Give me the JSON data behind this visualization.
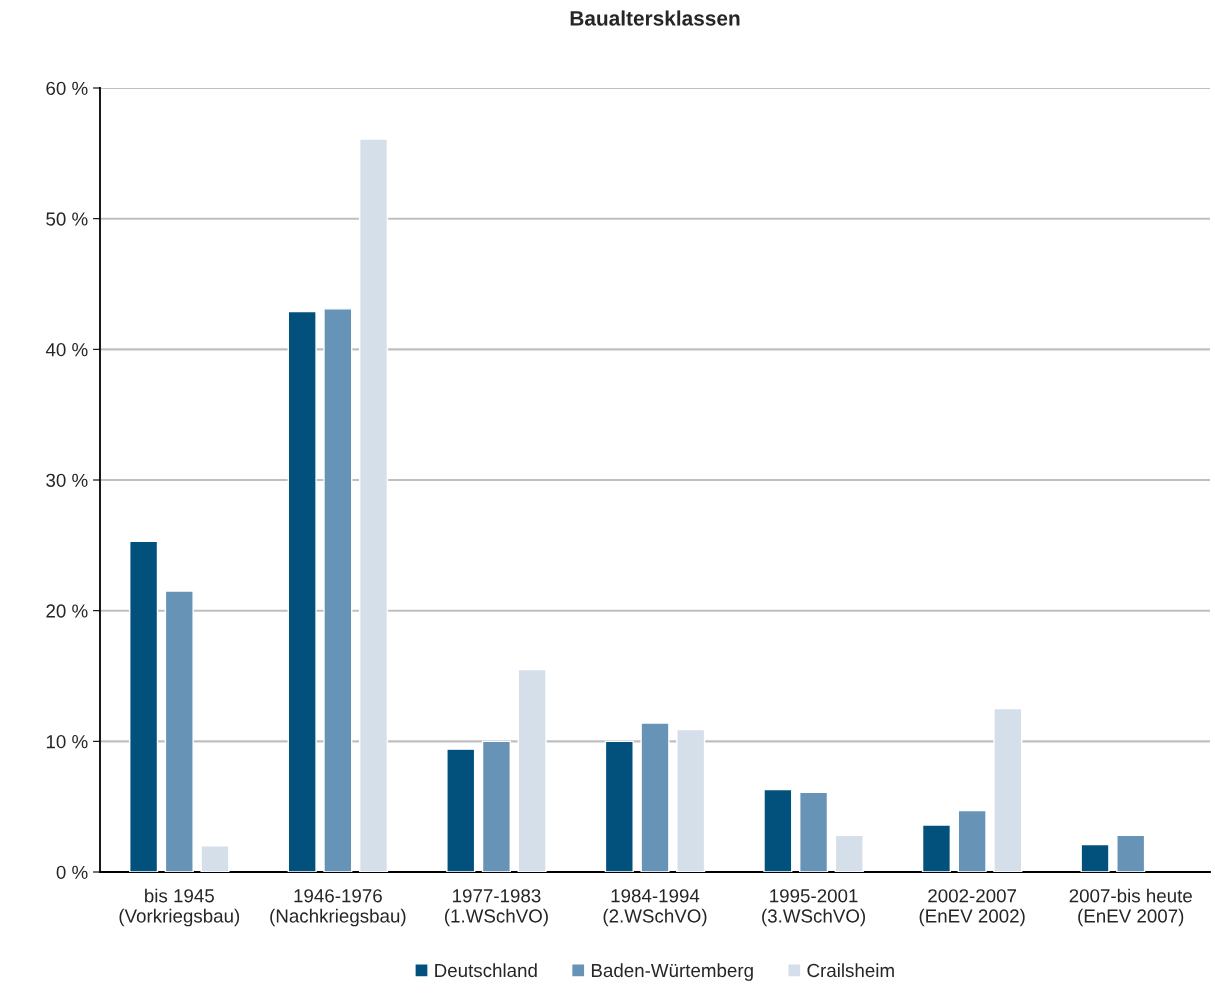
{
  "chart_data": {
    "type": "bar",
    "title": "Baualtersklassen",
    "categories": [
      "bis 1945\n(Vorkriegsbau)",
      "1946-1976\n(Nachkriegsbau)",
      "1977-1983\n(1.WSchVO)",
      "1984-1994\n(2.WSchVO)",
      "1995-2001\n(3.WSchVO)",
      "2002-2007\n(EnEV 2002)",
      "2007-bis heute\n(EnEV 2007)"
    ],
    "series": [
      {
        "name": "Deutschland",
        "color": "#02507c",
        "values": [
          25.3,
          42.9,
          9.4,
          10.0,
          6.3,
          3.6,
          2.1
        ]
      },
      {
        "name": "Baden-Würtemberg",
        "color": "#6793b6",
        "values": [
          21.5,
          43.1,
          10.0,
          11.4,
          6.1,
          4.7,
          2.8
        ]
      },
      {
        "name": "Crailsheim",
        "color": "#d4dfea",
        "values": [
          2.0,
          56.1,
          15.5,
          10.9,
          2.8,
          12.5,
          null
        ]
      }
    ],
    "ylim": [
      0,
      60
    ],
    "yticks": [
      {
        "value": 0,
        "label": "0 %"
      },
      {
        "value": 10,
        "label": "10 %"
      },
      {
        "value": 20,
        "label": "20 %"
      },
      {
        "value": 30,
        "label": "30 %"
      },
      {
        "value": 40,
        "label": "40 %"
      },
      {
        "value": 50,
        "label": "50 %"
      },
      {
        "value": 60,
        "label": "60 %"
      }
    ],
    "grid": "y",
    "legend": "bottom"
  }
}
